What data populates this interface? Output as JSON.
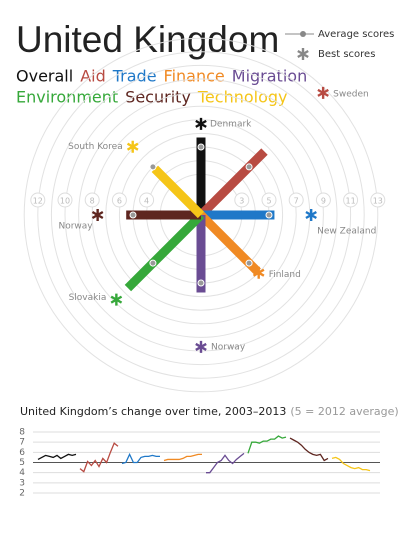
{
  "chart_data": [
    {
      "type": "radial-bar",
      "title": "United Kingdom",
      "average_label": "Average scores",
      "best_label": "Best scores",
      "rticks": [
        3,
        4,
        5,
        6,
        7,
        8,
        9,
        10,
        11,
        12,
        13
      ],
      "components": [
        {
          "name": "Overall",
          "color": "#111111",
          "value": 5.7,
          "average": 5,
          "best_value": 6.7,
          "best_country": "Denmark"
        },
        {
          "name": "Aid",
          "color": "#b84b42",
          "value": 6.6,
          "average": 5,
          "best_value": 12.7,
          "best_country": "Sweden"
        },
        {
          "name": "Trade",
          "color": "#1f78c8",
          "value": 5.4,
          "average": 5,
          "best_value": 8.1,
          "best_country": "New Zealand"
        },
        {
          "name": "Finance",
          "color": "#f08a24",
          "value": 5.9,
          "average": 5,
          "best_value": 6.0,
          "best_country": "Finland"
        },
        {
          "name": "Migration",
          "color": "#6a4c93",
          "value": 5.7,
          "average": 5,
          "best_value": 9.7,
          "best_country": "Norway"
        },
        {
          "name": "Environment",
          "color": "#36a83a",
          "value": 7.6,
          "average": 5,
          "best_value": 8.8,
          "best_country": "Slovakia"
        },
        {
          "name": "Security",
          "color": "#5e2620",
          "value": 5.5,
          "average": 5,
          "best_value": 7.6,
          "best_country": "Norway"
        },
        {
          "name": "Technology",
          "color": "#f5c518",
          "value": 4.8,
          "average": 5,
          "best_value": 7.1,
          "best_country": "South Korea"
        }
      ]
    },
    {
      "type": "line",
      "title": "United Kingdom’s change over time, 2003–2013",
      "subtitle": "(5 = 2012 average)",
      "ylim": [
        2,
        8
      ],
      "yticks": [
        2,
        3,
        4,
        5,
        6,
        7,
        8
      ],
      "reference_line": 5,
      "series": [
        {
          "color": "#111111",
          "values": [
            5.3,
            5.5,
            5.7,
            5.6,
            5.5,
            5.7,
            5.4,
            5.6,
            5.8,
            5.7,
            5.8
          ]
        },
        {
          "color": "#b84b42",
          "values": [
            4.4,
            4.1,
            5.1,
            4.7,
            5.2,
            4.6,
            5.4,
            5.0,
            6.0,
            6.9,
            6.6
          ]
        },
        {
          "color": "#1f78c8",
          "values": [
            4.9,
            5.0,
            5.8,
            5.0,
            5.0,
            5.5,
            5.6,
            5.6,
            5.7,
            5.6,
            5.6
          ]
        },
        {
          "color": "#f08a24",
          "values": [
            5.2,
            5.3,
            5.3,
            5.3,
            5.3,
            5.4,
            5.6,
            5.6,
            5.7,
            5.8,
            5.8
          ]
        },
        {
          "color": "#6a4c93",
          "values": [
            4.0,
            4.0,
            4.5,
            5.0,
            5.2,
            5.7,
            5.2,
            4.9,
            5.3,
            5.6,
            5.9
          ]
        },
        {
          "color": "#36a83a",
          "values": [
            5.9,
            7.0,
            7.0,
            6.9,
            7.1,
            7.1,
            7.3,
            7.3,
            7.6,
            7.4,
            7.5
          ]
        },
        {
          "color": "#5e2620",
          "values": [
            7.4,
            7.2,
            7.0,
            6.7,
            6.3,
            6.0,
            5.8,
            5.7,
            5.8,
            5.2,
            5.4
          ]
        },
        {
          "color": "#f5c518",
          "values": [
            5.4,
            5.5,
            5.3,
            4.9,
            4.7,
            4.5,
            4.4,
            4.5,
            4.3,
            4.3,
            4.2
          ]
        }
      ]
    }
  ]
}
